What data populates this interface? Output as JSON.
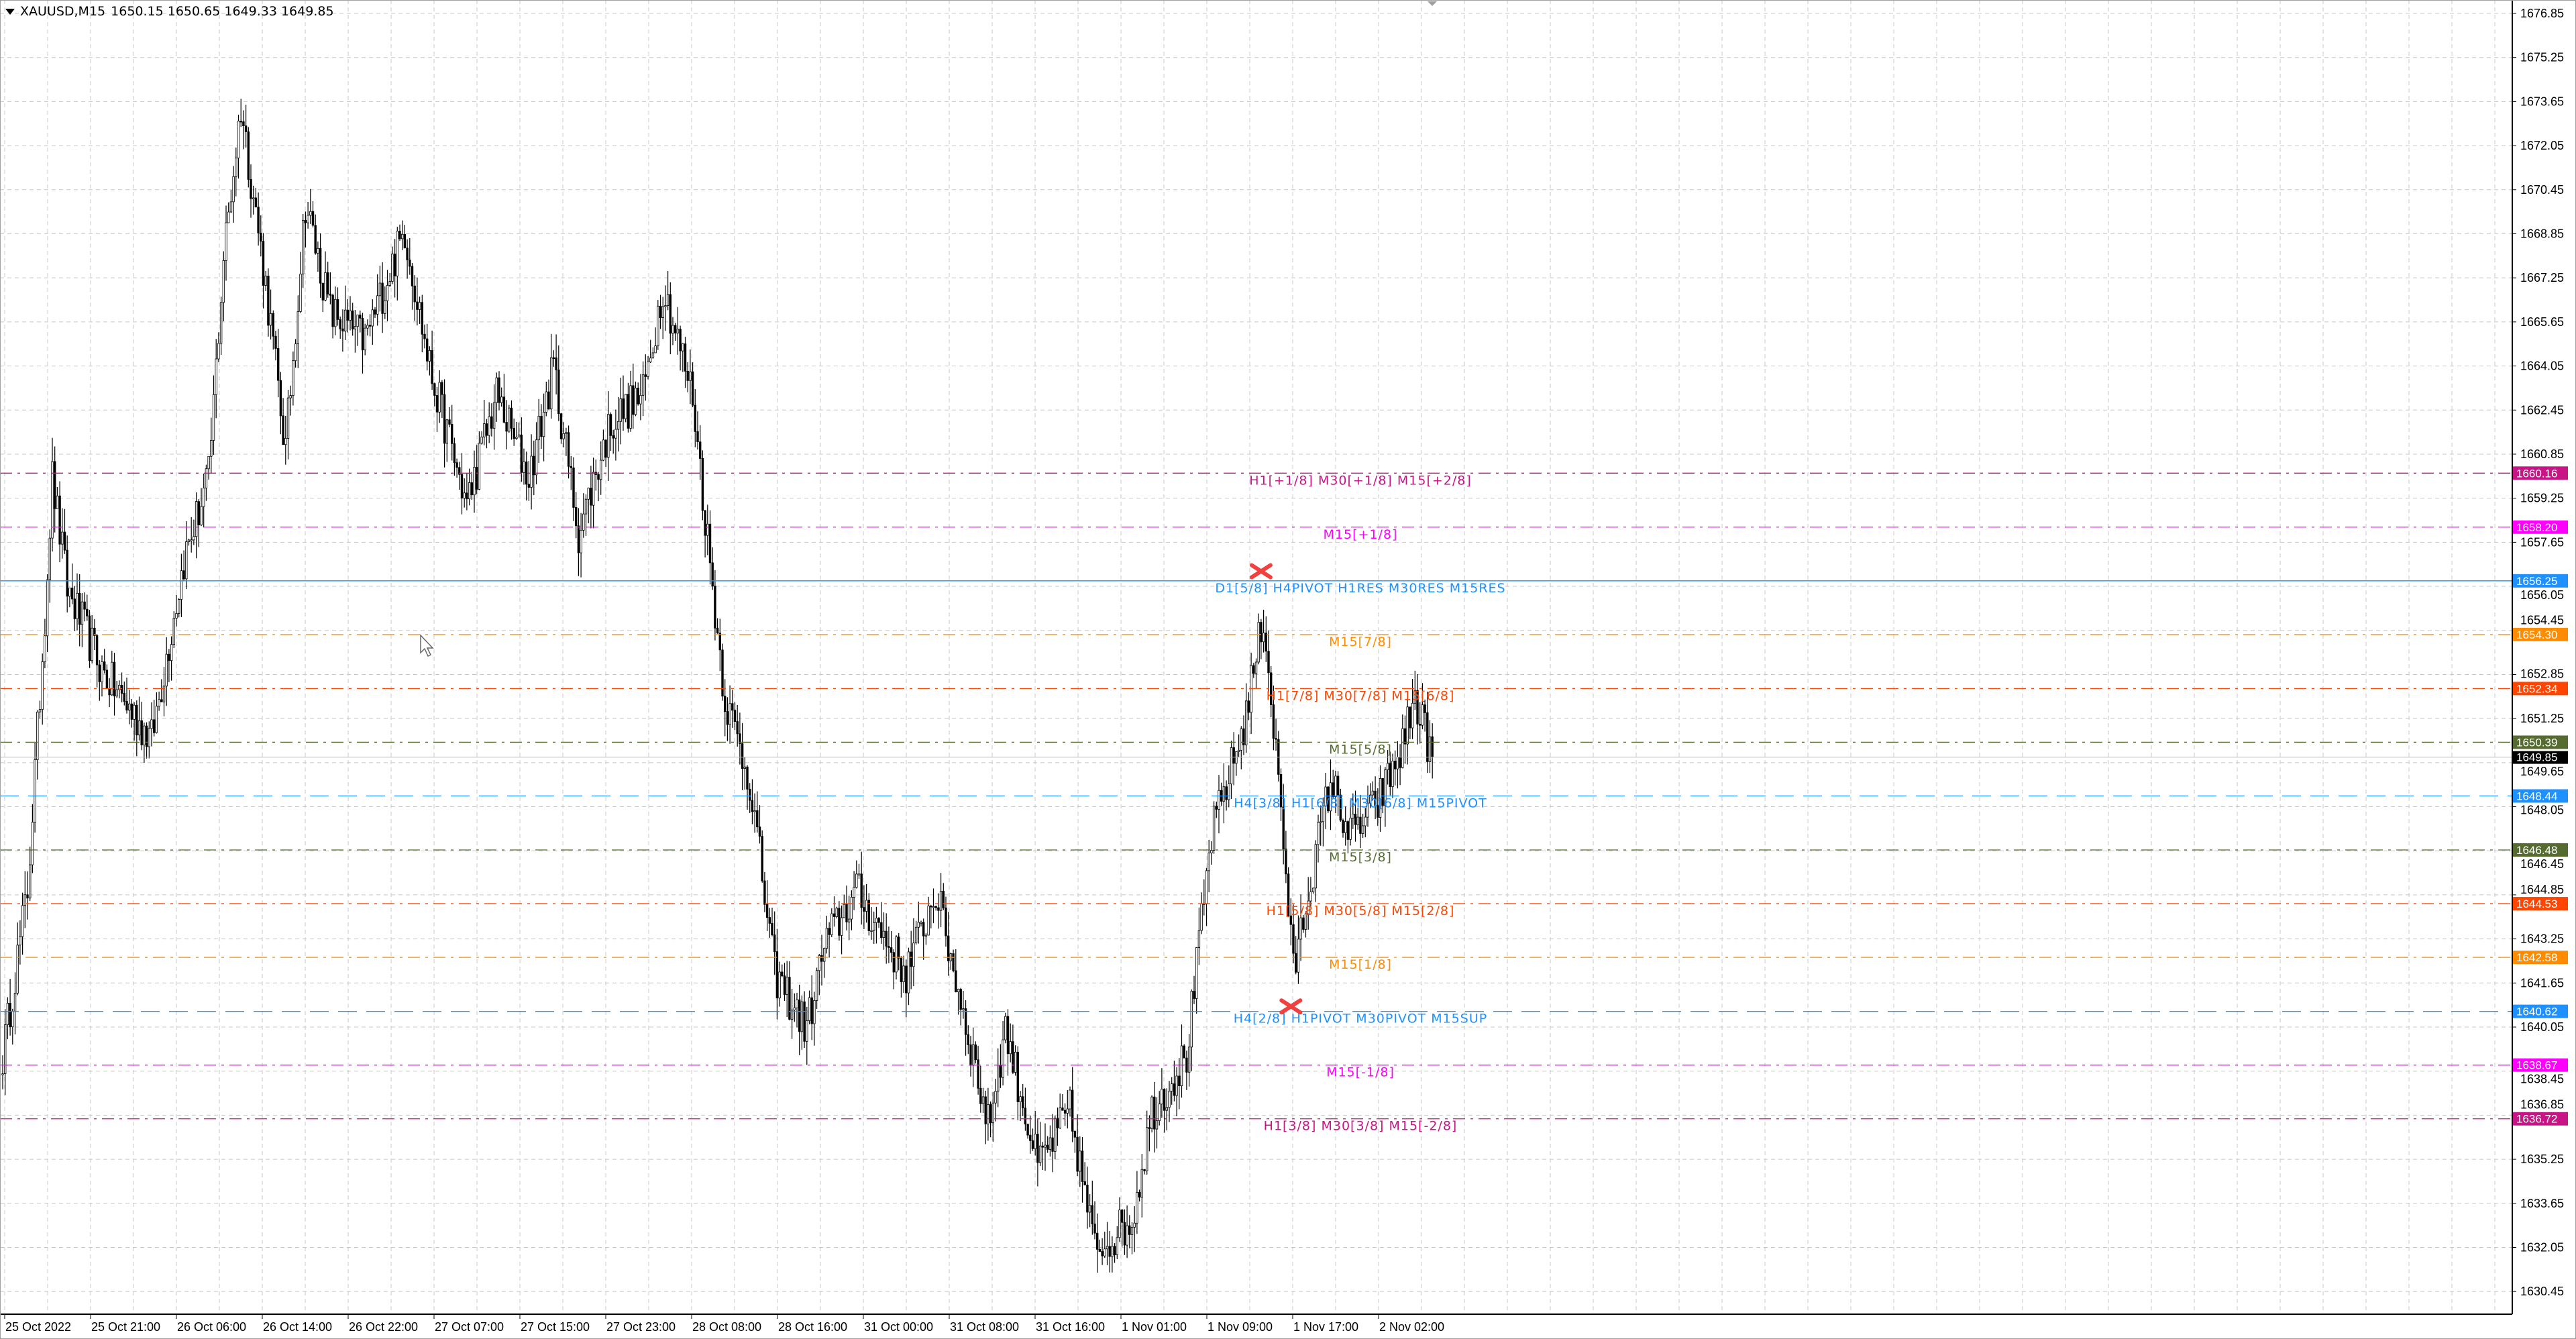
{
  "header": {
    "symbol": "XAUUSD,M15",
    "ohlc": "1650.15 1650.65 1649.33 1649.85"
  },
  "price_axis": {
    "ticks": [
      "1676.85",
      "1675.25",
      "1673.65",
      "1672.05",
      "1670.45",
      "1668.85",
      "1667.25",
      "1665.65",
      "1664.05",
      "1662.45",
      "1660.85",
      "1659.25",
      "1657.65",
      "1656.05",
      "1654.45",
      "1652.85",
      "1651.25",
      "1649.65",
      "1648.05",
      "1646.45",
      "1644.85",
      "1643.25",
      "1641.65",
      "1640.05",
      "1638.45",
      "1636.85",
      "1635.25",
      "1633.65",
      "1632.05",
      "1630.45"
    ],
    "current_price": "1649.85",
    "current_price_color": "#000000"
  },
  "time_axis": {
    "labels": [
      "25 Oct 2022",
      "25 Oct 21:00",
      "26 Oct 06:00",
      "26 Oct 14:00",
      "26 Oct 22:00",
      "27 Oct 07:00",
      "27 Oct 15:00",
      "27 Oct 23:00",
      "28 Oct 08:00",
      "28 Oct 16:00",
      "31 Oct 00:00",
      "31 Oct 08:00",
      "31 Oct 16:00",
      "1 Nov 01:00",
      "1 Nov 09:00",
      "1 Nov 17:00",
      "2 Nov 02:00"
    ]
  },
  "levels": [
    {
      "price": "1660.16",
      "label": "H1[+1/8] M30[+1/8] M15[+2/8]",
      "color": "#c71585",
      "style": "dashdot"
    },
    {
      "price": "1658.20",
      "label": "M15[+1/8]",
      "color": "#ff00ff",
      "style": "dashdot"
    },
    {
      "price": "1656.25",
      "label": "D1[5/8] H4PIVOT H1RES M30RES M15RES",
      "color": "#1e90ff",
      "style": "solid"
    },
    {
      "price": "1654.30",
      "label": "M15[7/8]",
      "color": "#ff8c00",
      "style": "dashdot"
    },
    {
      "price": "1652.34",
      "label": "H1[7/8] M30[7/8] M15[6/8]",
      "color": "#ff4500",
      "style": "dashdot"
    },
    {
      "price": "1650.39",
      "label": "M15[5/8]",
      "color": "#556b2f",
      "style": "dashdot"
    },
    {
      "price": "1648.44",
      "label": "H4[3/8] H1[6/8] M30[6/8] M15PIVOT",
      "color": "#1e90ff",
      "style": "dash"
    },
    {
      "price": "1646.48",
      "label": "M15[3/8]",
      "color": "#556b2f",
      "style": "dashdot"
    },
    {
      "price": "1644.53",
      "label": "H1[5/8] M30[5/8] M15[2/8]",
      "color": "#ff4500",
      "style": "dashdot"
    },
    {
      "price": "1642.58",
      "label": "M15[1/8]",
      "color": "#ff8c00",
      "style": "dashdot"
    },
    {
      "price": "1640.62",
      "label": "H4[2/8] H1PIVOT M30PIVOT M15SUP",
      "color": "#1e90ff",
      "style": "dash"
    },
    {
      "price": "1638.67",
      "label": "M15[-1/8]",
      "color": "#ff00ff",
      "style": "dashdot"
    },
    {
      "price": "1636.72",
      "label": "H1[3/8] M30[3/8] M15[-2/8]",
      "color": "#c71585",
      "style": "dashdot"
    }
  ],
  "markers": [
    {
      "icon": "red-x-marker",
      "color": "#f04040",
      "price": 1656.6,
      "bar": 507
    },
    {
      "icon": "red-x-marker",
      "color": "#f04040",
      "price": 1640.8,
      "bar": 519
    }
  ],
  "chart_data": {
    "type": "candlestick",
    "symbol": "XAUUSD",
    "timeframe": "M15",
    "ylim": [
      1630.45,
      1676.85
    ],
    "grid": true,
    "approx_close_waypoints": [
      [
        0,
        1639
      ],
      [
        10,
        1645
      ],
      [
        17,
        1655
      ],
      [
        20,
        1660
      ],
      [
        26,
        1656
      ],
      [
        40,
        1653
      ],
      [
        60,
        1650.5
      ],
      [
        73,
        1657
      ],
      [
        83,
        1660
      ],
      [
        89,
        1668
      ],
      [
        96,
        1673.5
      ],
      [
        106,
        1667
      ],
      [
        114,
        1661
      ],
      [
        122,
        1670
      ],
      [
        132,
        1666
      ],
      [
        146,
        1665
      ],
      [
        162,
        1669
      ],
      [
        172,
        1664
      ],
      [
        187,
        1659
      ],
      [
        199,
        1663
      ],
      [
        212,
        1660
      ],
      [
        222,
        1664
      ],
      [
        232,
        1658
      ],
      [
        245,
        1662
      ],
      [
        258,
        1663
      ],
      [
        266,
        1667
      ],
      [
        278,
        1663
      ],
      [
        286,
        1656
      ],
      [
        291,
        1652
      ],
      [
        301,
        1649
      ],
      [
        311,
        1642
      ],
      [
        324,
        1640
      ],
      [
        331,
        1643
      ],
      [
        344,
        1645
      ],
      [
        364,
        1642
      ],
      [
        376,
        1645
      ],
      [
        391,
        1639
      ],
      [
        397,
        1636.5
      ],
      [
        404,
        1640
      ],
      [
        417,
        1635
      ],
      [
        430,
        1637
      ],
      [
        440,
        1632
      ],
      [
        455,
        1633
      ],
      [
        463,
        1637
      ],
      [
        477,
        1639
      ],
      [
        487,
        1647
      ],
      [
        500,
        1651
      ],
      [
        508,
        1655
      ],
      [
        515,
        1648
      ],
      [
        520,
        1642
      ],
      [
        526,
        1645
      ],
      [
        535,
        1649
      ],
      [
        543,
        1647
      ],
      [
        553,
        1648
      ],
      [
        563,
        1650
      ],
      [
        569,
        1652
      ],
      [
        576,
        1649.85
      ]
    ]
  }
}
